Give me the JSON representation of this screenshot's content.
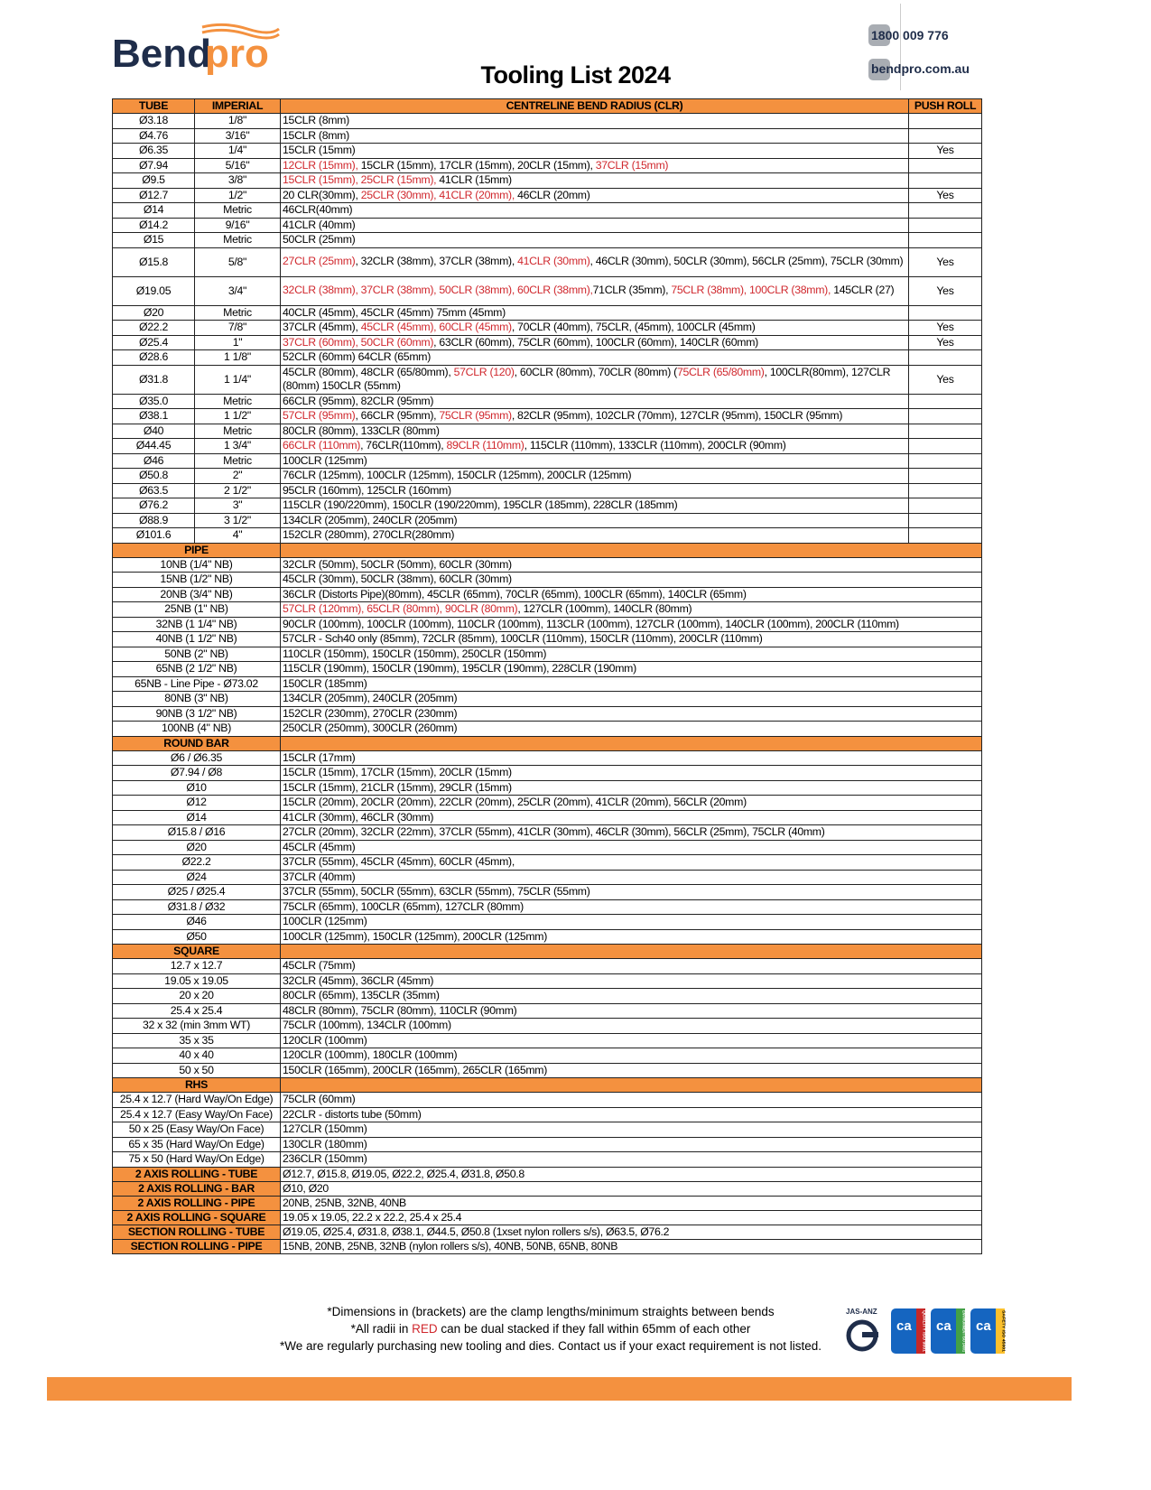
{
  "header": {
    "logo_text": "Bendpro",
    "title": "Tooling List 2024",
    "phone": "1800 009 776",
    "website": "bendpro.com.au"
  },
  "colors": {
    "accent": "#f4913f",
    "red": "#d0282e",
    "brand_navy": "#1f2d4a"
  },
  "table": {
    "headers": [
      "TUBE",
      "IMPERIAL",
      "CENTRELINE BEND RADIUS (CLR)",
      "PUSH ROLL"
    ],
    "tube_rows": [
      {
        "tube": "Ø3.18",
        "imperial": "1/8\"",
        "clr": [
          "15CLR (8mm)"
        ],
        "push": ""
      },
      {
        "tube": "Ø4.76",
        "imperial": "3/16\"",
        "clr": [
          "15CLR (8mm)"
        ],
        "push": ""
      },
      {
        "tube": "Ø6.35",
        "imperial": "1/4\"",
        "clr": [
          "15CLR (15mm)"
        ],
        "push": "Yes"
      },
      {
        "tube": "Ø7.94",
        "imperial": "5/16\"",
        "clr": [
          {
            "red": "12CLR (15mm), "
          },
          "15CLR (15mm), 17CLR (15mm), 20CLR (15mm), ",
          {
            "red": "37CLR (15mm)"
          }
        ],
        "push": ""
      },
      {
        "tube": "Ø9.5",
        "imperial": "3/8\"",
        "clr": [
          {
            "red": "15CLR (15mm), 25CLR (15mm), "
          },
          "41CLR (15mm)"
        ],
        "push": ""
      },
      {
        "tube": "Ø12.7",
        "imperial": "1/2\"",
        "clr": [
          "20 CLR(30mm), ",
          {
            "red": "25CLR (30mm), 41CLR (20mm), "
          },
          "46CLR (20mm)"
        ],
        "push": "Yes"
      },
      {
        "tube": "Ø14",
        "imperial": "Metric",
        "clr": [
          "46CLR(40mm)"
        ],
        "push": ""
      },
      {
        "tube": "Ø14.2",
        "imperial": "9/16\"",
        "clr": [
          "41CLR (40mm)"
        ],
        "push": ""
      },
      {
        "tube": "Ø15",
        "imperial": "Metric",
        "clr": [
          "50CLR (25mm)"
        ],
        "push": ""
      },
      {
        "tube": "Ø15.8",
        "imperial": "5/8\"",
        "clr": [
          {
            "red": "27CLR (25mm)"
          },
          ", 32CLR (38mm), 37CLR (38mm), ",
          {
            "red": "41CLR (30mm)"
          },
          ", 46CLR (30mm), 50CLR (30mm), 56CLR (25mm), 75CLR (30mm)"
        ],
        "push": "Yes",
        "two": true
      },
      {
        "tube": "Ø19.05",
        "imperial": "3/4\"",
        "clr": [
          {
            "red": "32CLR (38mm), 37CLR (38mm), 50CLR (38mm), 60CLR (38mm),"
          },
          "71CLR (35mm), ",
          {
            "red": "75CLR (38mm), 100CLR (38mm),"
          },
          " 145CLR (27)"
        ],
        "push": "Yes",
        "two": true
      },
      {
        "tube": "Ø20",
        "imperial": "Metric",
        "clr": [
          "40CLR (45mm), 45CLR (45mm) 75mm (45mm)"
        ],
        "push": ""
      },
      {
        "tube": "Ø22.2",
        "imperial": "7/8\"",
        "clr": [
          "37CLR (45mm), ",
          {
            "red": "45CLR (45mm), 60CLR (45mm)"
          },
          ", 70CLR (40mm), 75CLR, (45mm), 100CLR (45mm)"
        ],
        "push": "Yes"
      },
      {
        "tube": "Ø25.4",
        "imperial": "1\"",
        "clr": [
          {
            "red": "37CLR (60mm), 50CLR (60mm)"
          },
          ", 63CLR (60mm), 75CLR (60mm), 100CLR (60mm), 140CLR (60mm)"
        ],
        "push": "Yes"
      },
      {
        "tube": "Ø28.6",
        "imperial": "1 1/8\"",
        "clr": [
          "52CLR (60mm) 64CLR (65mm)"
        ],
        "push": ""
      },
      {
        "tube": "Ø31.8",
        "imperial": "1 1/4\"",
        "clr": [
          "45CLR (80mm), 48CLR (65/80mm), ",
          {
            "red": "57CLR (120)"
          },
          ", 60CLR (80mm), 70CLR (80mm) (",
          {
            "red": "75CLR (65/80mm)"
          },
          ", 100CLR(80mm), 127CLR (80mm) 150CLR (55mm)"
        ],
        "push": "Yes",
        "two": true
      },
      {
        "tube": "Ø35.0",
        "imperial": "Metric",
        "clr": [
          "66CLR (95mm), 82CLR (95mm)"
        ],
        "push": ""
      },
      {
        "tube": "Ø38.1",
        "imperial": "1 1/2\"",
        "clr": [
          {
            "red": "57CLR (95mm)"
          },
          ", 66CLR (95mm), ",
          {
            "red": "75CLR (95mm)"
          },
          ", 82CLR (95mm), 102CLR (70mm), 127CLR (95mm), 150CLR (95mm)"
        ],
        "push": ""
      },
      {
        "tube": "Ø40",
        "imperial": "Metric",
        "clr": [
          "80CLR (80mm), 133CLR (80mm)"
        ],
        "push": ""
      },
      {
        "tube": "Ø44.45",
        "imperial": "1 3/4\"",
        "clr": [
          {
            "red": "66CLR (110mm)"
          },
          ", 76CLR(110mm), ",
          {
            "red": "89CLR (110mm)"
          },
          ", 115CLR (110mm), 133CLR (110mm), 200CLR (90mm)"
        ],
        "push": ""
      },
      {
        "tube": "Ø46",
        "imperial": "Metric",
        "clr": [
          "100CLR (125mm)"
        ],
        "push": ""
      },
      {
        "tube": "Ø50.8",
        "imperial": "2\"",
        "clr": [
          "76CLR (125mm), 100CLR (125mm), 150CLR (125mm), 200CLR (125mm)"
        ],
        "push": ""
      },
      {
        "tube": "Ø63.5",
        "imperial": "2 1/2\"",
        "clr": [
          "95CLR (160mm), 125CLR (160mm)"
        ],
        "push": ""
      },
      {
        "tube": "Ø76.2",
        "imperial": "3\"",
        "clr": [
          "115CLR (190/220mm), 150CLR (190/220mm), 195CLR (185mm), 228CLR (185mm)"
        ],
        "push": ""
      },
      {
        "tube": "Ø88.9",
        "imperial": "3 1/2\"",
        "clr": [
          "134CLR (205mm), 240CLR (205mm)"
        ],
        "push": ""
      },
      {
        "tube": "Ø101.6",
        "imperial": "4\"",
        "clr": [
          "152CLR (280mm), 270CLR(280mm)"
        ],
        "push": ""
      }
    ],
    "sections": [
      {
        "title": "PIPE",
        "rows": [
          {
            "size": "10NB (1/4\" NB)",
            "clr": [
              "32CLR (50mm), 50CLR (50mm), 60CLR (30mm)"
            ]
          },
          {
            "size": "15NB (1/2\" NB)",
            "clr": [
              "45CLR (30mm), 50CLR (38mm), 60CLR (30mm)"
            ]
          },
          {
            "size": "20NB (3/4\" NB)",
            "clr": [
              "36CLR (Distorts Pipe)(80mm), 45CLR (65mm), 70CLR (65mm), 100CLR (65mm), 140CLR (65mm)"
            ]
          },
          {
            "size": "25NB (1\" NB)",
            "clr": [
              {
                "red": "57CLR (120mm), 65CLR (80mm), 90CLR (80mm)"
              },
              ", 127CLR (100mm), 140CLR (80mm)"
            ]
          },
          {
            "size": "32NB (1 1/4\" NB)",
            "clr": [
              "90CLR (100mm), 100CLR (100mm), 110CLR (100mm), 113CLR (100mm), 127CLR (100mm), 140CLR (100mm), 200CLR (110mm)"
            ]
          },
          {
            "size": "40NB (1 1/2\" NB)",
            "clr": [
              "57CLR - Sch40 only (85mm), 72CLR (85mm), 100CLR (110mm), 150CLR (110mm), 200CLR (110mm)"
            ]
          },
          {
            "size": "50NB (2\" NB)",
            "clr": [
              "110CLR (150mm), 150CLR (150mm), 250CLR (150mm)"
            ]
          },
          {
            "size": "65NB (2 1/2\" NB)",
            "clr": [
              "115CLR (190mm), 150CLR (190mm), 195CLR (190mm), 228CLR (190mm)"
            ]
          },
          {
            "size": "65NB - Line Pipe - Ø73.02",
            "clr": [
              "150CLR (185mm)"
            ]
          },
          {
            "size": "80NB (3\" NB)",
            "clr": [
              "134CLR (205mm), 240CLR (205mm)"
            ]
          },
          {
            "size": "90NB (3 1/2\" NB)",
            "clr": [
              "152CLR (230mm), 270CLR (230mm)"
            ]
          },
          {
            "size": "100NB (4\" NB)",
            "clr": [
              "250CLR (250mm), 300CLR (260mm)"
            ]
          }
        ]
      },
      {
        "title": "ROUND BAR",
        "rows": [
          {
            "size": "Ø6 / Ø6.35",
            "clr": [
              "15CLR (17mm)"
            ]
          },
          {
            "size": "Ø7.94 / Ø8",
            "clr": [
              "15CLR (15mm), 17CLR (15mm), 20CLR (15mm)"
            ]
          },
          {
            "size": "Ø10",
            "clr": [
              "15CLR (15mm), 21CLR (15mm), 29CLR (15mm)"
            ]
          },
          {
            "size": "Ø12",
            "clr": [
              "15CLR (20mm), 20CLR (20mm), 22CLR (20mm), 25CLR (20mm), 41CLR (20mm), 56CLR (20mm)"
            ]
          },
          {
            "size": "Ø14",
            "clr": [
              "41CLR (30mm), 46CLR (30mm)"
            ]
          },
          {
            "size": "Ø15.8 / Ø16",
            "clr": [
              "27CLR (20mm), 32CLR (22mm), 37CLR (55mm), 41CLR (30mm), 46CLR (30mm), 56CLR (25mm), 75CLR (40mm)"
            ]
          },
          {
            "size": "Ø20",
            "clr": [
              "45CLR (45mm)"
            ]
          },
          {
            "size": "Ø22.2",
            "clr": [
              "37CLR (55mm), 45CLR (45mm), 60CLR (45mm),"
            ]
          },
          {
            "size": "Ø24",
            "clr": [
              "37CLR (40mm)"
            ]
          },
          {
            "size": "Ø25 / Ø25.4",
            "clr": [
              "37CLR (55mm), 50CLR (55mm), 63CLR (55mm), 75CLR (55mm)"
            ]
          },
          {
            "size": "Ø31.8 / Ø32",
            "clr": [
              "75CLR (65mm), 100CLR (65mm), 127CLR (80mm)"
            ]
          },
          {
            "size": "Ø46",
            "clr": [
              "100CLR (125mm)"
            ]
          },
          {
            "size": "Ø50",
            "clr": [
              "100CLR (125mm), 150CLR (125mm), 200CLR (125mm)"
            ]
          }
        ]
      },
      {
        "title": "SQUARE",
        "rows": [
          {
            "size": "12.7 x 12.7",
            "clr": [
              "45CLR (75mm)"
            ]
          },
          {
            "size": "19.05 x 19.05",
            "clr": [
              "32CLR (45mm), 36CLR (45mm)"
            ]
          },
          {
            "size": "20 x 20",
            "clr": [
              "80CLR (65mm), 135CLR (35mm)"
            ]
          },
          {
            "size": "25.4 x 25.4",
            "clr": [
              "48CLR (80mm), 75CLR (80mm), 110CLR (90mm)"
            ]
          },
          {
            "size": "32 x 32 (min 3mm WT)",
            "clr": [
              "75CLR (100mm), 134CLR (100mm)"
            ]
          },
          {
            "size": "35 x 35",
            "clr": [
              "120CLR (100mm)"
            ]
          },
          {
            "size": "40 x 40",
            "clr": [
              "120CLR (100mm), 180CLR (100mm)"
            ]
          },
          {
            "size": "50 x 50",
            "clr": [
              "150CLR (165mm), 200CLR (165mm), 265CLR (165mm)"
            ]
          }
        ]
      },
      {
        "title": "RHS",
        "rows": [
          {
            "size": "25.4 x 12.7 (Hard Way/On Edge)",
            "clr": [
              "75CLR (60mm)"
            ]
          },
          {
            "size": "25.4 x 12.7 (Easy Way/On Face)",
            "clr": [
              "22CLR - distorts tube (50mm)"
            ]
          },
          {
            "size": "50 x 25 (Easy Way/On Face)",
            "clr": [
              "127CLR (150mm)"
            ]
          },
          {
            "size": "65 x 35 (Hard Way/On Edge)",
            "clr": [
              "130CLR (180mm)"
            ]
          },
          {
            "size": "75 x 50 (Hard Way/On Edge)",
            "clr": [
              "236CLR (150mm)"
            ]
          }
        ]
      }
    ],
    "rolling": [
      {
        "label": "2 AXIS ROLLING - TUBE",
        "value": "Ø12.7, Ø15.8, Ø19.05, Ø22.2, Ø25.4, Ø31.8, Ø50.8"
      },
      {
        "label": "2 AXIS ROLLING - BAR",
        "value": "Ø10, Ø20"
      },
      {
        "label": "2 AXIS ROLLING - PIPE",
        "value": "20NB, 25NB, 32NB, 40NB"
      },
      {
        "label": "2 AXIS ROLLING - SQUARE",
        "value": "19.05 x 19.05, 22.2 x 22.2, 25.4 x 25.4"
      },
      {
        "label": "SECTION ROLLING - TUBE",
        "value": "Ø19.05, Ø25.4, Ø31.8, Ø38.1, Ø44.5, Ø50.8 (1xset nylon rollers s/s), Ø63.5, Ø76.2"
      },
      {
        "label": "SECTION ROLLING - PIPE",
        "value": "15NB, 20NB, 25NB, 32NB (nylon rollers s/s), 40NB, 50NB, 65NB, 80NB"
      }
    ]
  },
  "notes": {
    "line1": "*Dimensions in (brackets) are the clamp lengths/minimum straights between bends",
    "line2_pre": "*All radii in ",
    "line2_red": "RED",
    "line2_post": " can be dual stacked if they fall within 65mm of each other",
    "line3": "*We are regularly purchasing new tooling and dies. Contact us if your exact requirement is not listed."
  },
  "certifications": {
    "jasanz": "JAS-ANZ",
    "badges": [
      "QUALITY ISO 9001",
      "ENVIRONMENT ISO 14001",
      "SAFETY ISO 45001"
    ]
  }
}
